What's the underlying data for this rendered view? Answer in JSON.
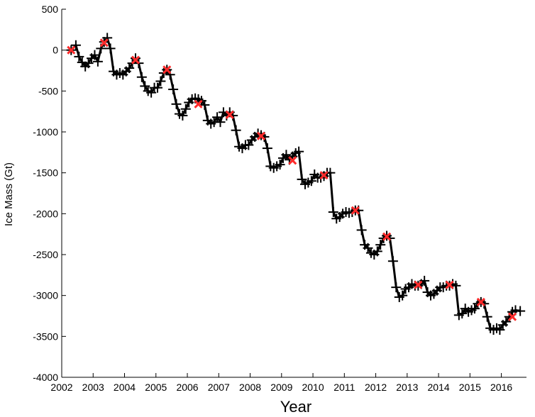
{
  "chart_data": {
    "type": "line",
    "title": "",
    "xlabel": "Year",
    "ylabel": "Ice Mass (Gt)",
    "xlim": [
      2002.0,
      2016.8
    ],
    "ylim": [
      -4000,
      500
    ],
    "x_ticks": [
      2002,
      2003,
      2004,
      2005,
      2006,
      2007,
      2008,
      2009,
      2010,
      2011,
      2012,
      2013,
      2014,
      2015,
      2016
    ],
    "y_ticks": [
      500,
      0,
      -500,
      -1000,
      -1500,
      -2000,
      -2500,
      -3000,
      -3500,
      -4000
    ],
    "grid": false,
    "legend": "none",
    "colors": {
      "series": "#000000",
      "annual_marker": "#ff2a2a"
    },
    "series": [
      {
        "marker": "plus",
        "points": [
          [
            2002.3,
            0
          ],
          [
            2002.45,
            60
          ],
          [
            2002.55,
            -80
          ],
          [
            2002.65,
            -150
          ],
          [
            2002.75,
            -200
          ],
          [
            2002.85,
            -160
          ],
          [
            2002.95,
            -100
          ],
          [
            2003.05,
            -60
          ],
          [
            2003.15,
            -140
          ],
          [
            2003.25,
            20
          ],
          [
            2003.35,
            100
          ],
          [
            2003.45,
            150
          ],
          [
            2003.55,
            20
          ],
          [
            2003.65,
            -260
          ],
          [
            2003.75,
            -300
          ],
          [
            2003.85,
            -280
          ],
          [
            2003.95,
            -300
          ],
          [
            2004.05,
            -260
          ],
          [
            2004.15,
            -220
          ],
          [
            2004.25,
            -160
          ],
          [
            2004.35,
            -100
          ],
          [
            2004.45,
            -160
          ],
          [
            2004.55,
            -330
          ],
          [
            2004.65,
            -440
          ],
          [
            2004.75,
            -500
          ],
          [
            2004.85,
            -520
          ],
          [
            2004.95,
            -460
          ],
          [
            2005.05,
            -460
          ],
          [
            2005.15,
            -380
          ],
          [
            2005.25,
            -280
          ],
          [
            2005.35,
            -240
          ],
          [
            2005.45,
            -300
          ],
          [
            2005.55,
            -480
          ],
          [
            2005.65,
            -660
          ],
          [
            2005.75,
            -780
          ],
          [
            2005.85,
            -800
          ],
          [
            2005.95,
            -720
          ],
          [
            2006.05,
            -640
          ],
          [
            2006.15,
            -600
          ],
          [
            2006.25,
            -590
          ],
          [
            2006.35,
            -600
          ],
          [
            2006.45,
            -620
          ],
          [
            2006.55,
            -670
          ],
          [
            2006.65,
            -860
          ],
          [
            2006.75,
            -900
          ],
          [
            2006.85,
            -880
          ],
          [
            2006.95,
            -820
          ],
          [
            2007.05,
            -880
          ],
          [
            2007.15,
            -760
          ],
          [
            2007.25,
            -800
          ],
          [
            2007.35,
            -760
          ],
          [
            2007.45,
            -800
          ],
          [
            2007.55,
            -980
          ],
          [
            2007.65,
            -1180
          ],
          [
            2007.75,
            -1200
          ],
          [
            2007.85,
            -1160
          ],
          [
            2007.95,
            -1160
          ],
          [
            2008.05,
            -1100
          ],
          [
            2008.15,
            -1060
          ],
          [
            2008.25,
            -1020
          ],
          [
            2008.35,
            -1040
          ],
          [
            2008.45,
            -1060
          ],
          [
            2008.55,
            -1200
          ],
          [
            2008.65,
            -1420
          ],
          [
            2008.75,
            -1440
          ],
          [
            2008.85,
            -1420
          ],
          [
            2008.95,
            -1400
          ],
          [
            2009.05,
            -1320
          ],
          [
            2009.15,
            -1280
          ],
          [
            2009.25,
            -1340
          ],
          [
            2009.35,
            -1300
          ],
          [
            2009.45,
            -1260
          ],
          [
            2009.55,
            -1240
          ],
          [
            2009.65,
            -1580
          ],
          [
            2009.75,
            -1640
          ],
          [
            2009.85,
            -1620
          ],
          [
            2009.95,
            -1600
          ],
          [
            2010.05,
            -1520
          ],
          [
            2010.15,
            -1560
          ],
          [
            2010.25,
            -1560
          ],
          [
            2010.35,
            -1540
          ],
          [
            2010.45,
            -1500
          ],
          [
            2010.55,
            -1500
          ],
          [
            2010.65,
            -1980
          ],
          [
            2010.75,
            -2060
          ],
          [
            2010.85,
            -2040
          ],
          [
            2010.95,
            -2000
          ],
          [
            2011.05,
            -1980
          ],
          [
            2011.15,
            -1990
          ],
          [
            2011.25,
            -1980
          ],
          [
            2011.35,
            -1960
          ],
          [
            2011.45,
            -1960
          ],
          [
            2011.55,
            -2200
          ],
          [
            2011.65,
            -2380
          ],
          [
            2011.75,
            -2420
          ],
          [
            2011.85,
            -2480
          ],
          [
            2011.95,
            -2500
          ],
          [
            2012.05,
            -2460
          ],
          [
            2012.15,
            -2380
          ],
          [
            2012.25,
            -2300
          ],
          [
            2012.35,
            -2270
          ],
          [
            2012.45,
            -2300
          ],
          [
            2012.55,
            -2580
          ],
          [
            2012.65,
            -2900
          ],
          [
            2012.75,
            -3020
          ],
          [
            2012.85,
            -3000
          ],
          [
            2012.95,
            -2920
          ],
          [
            2013.05,
            -2900
          ],
          [
            2013.15,
            -2860
          ],
          [
            2013.25,
            -2880
          ],
          [
            2013.35,
            -2880
          ],
          [
            2013.45,
            -2860
          ],
          [
            2013.55,
            -2820
          ],
          [
            2013.65,
            -2960
          ],
          [
            2013.75,
            -3000
          ],
          [
            2013.85,
            -2980
          ],
          [
            2013.95,
            -2940
          ],
          [
            2014.05,
            -2900
          ],
          [
            2014.15,
            -2900
          ],
          [
            2014.25,
            -2880
          ],
          [
            2014.35,
            -2880
          ],
          [
            2014.45,
            -2860
          ],
          [
            2014.55,
            -2880
          ],
          [
            2014.65,
            -3240
          ],
          [
            2014.75,
            -3220
          ],
          [
            2014.85,
            -3160
          ],
          [
            2014.95,
            -3200
          ],
          [
            2015.05,
            -3180
          ],
          [
            2015.15,
            -3160
          ],
          [
            2015.25,
            -3100
          ],
          [
            2015.35,
            -3080
          ],
          [
            2015.45,
            -3100
          ],
          [
            2015.55,
            -3260
          ],
          [
            2015.65,
            -3400
          ],
          [
            2015.75,
            -3420
          ],
          [
            2015.85,
            -3400
          ],
          [
            2015.95,
            -3420
          ],
          [
            2016.05,
            -3360
          ],
          [
            2016.15,
            -3320
          ],
          [
            2016.25,
            -3260
          ],
          [
            2016.35,
            -3200
          ],
          [
            2016.45,
            -3180
          ],
          [
            2016.6,
            -3190
          ]
        ]
      },
      {
        "marker": "x",
        "points": [
          [
            2002.3,
            0
          ],
          [
            2003.35,
            90
          ],
          [
            2004.35,
            -120
          ],
          [
            2005.35,
            -240
          ],
          [
            2006.35,
            -660
          ],
          [
            2007.35,
            -790
          ],
          [
            2008.35,
            -1050
          ],
          [
            2009.35,
            -1350
          ],
          [
            2010.35,
            -1530
          ],
          [
            2011.35,
            -1960
          ],
          [
            2012.35,
            -2280
          ],
          [
            2013.35,
            -2870
          ],
          [
            2014.35,
            -2870
          ],
          [
            2015.35,
            -3080
          ],
          [
            2016.35,
            -3260
          ]
        ]
      }
    ]
  }
}
